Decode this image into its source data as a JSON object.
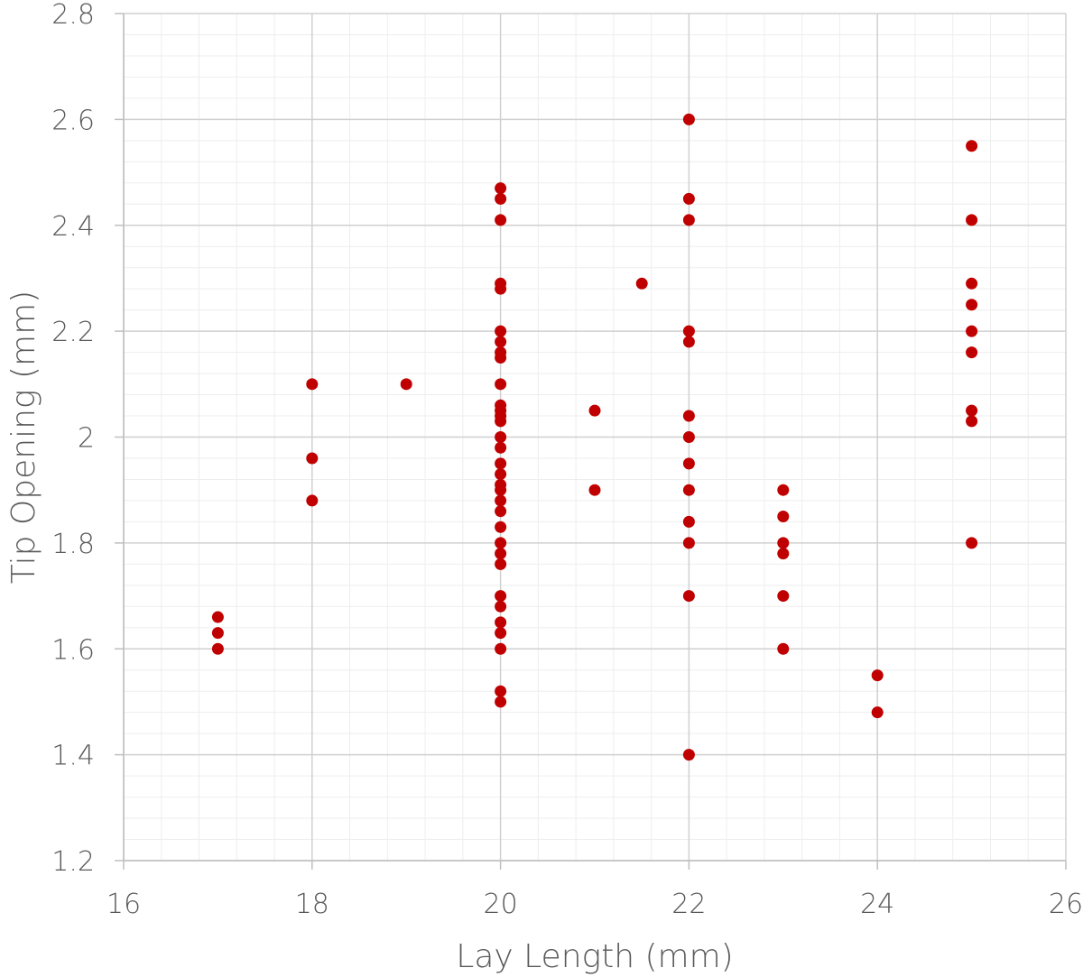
{
  "chart_data": {
    "type": "scatter",
    "title": "",
    "xlabel": "Lay Length (mm)",
    "ylabel": "Tip Opening (mm)",
    "xlim": [
      16,
      26
    ],
    "ylim": [
      1.2,
      2.8
    ],
    "x_ticks": [
      16,
      18,
      20,
      22,
      24,
      26
    ],
    "y_ticks": [
      1.2,
      1.4,
      1.6,
      1.8,
      2,
      2.2,
      2.4,
      2.6,
      2.8
    ],
    "x_tick_labels": [
      "16",
      "18",
      "20",
      "22",
      "24",
      "26"
    ],
    "y_tick_labels": [
      "1.2",
      "1.4",
      "1.6",
      "1.8",
      "2",
      "2.2",
      "2.4",
      "2.6",
      "2.8"
    ],
    "grid": true,
    "marker_color": "#C00000",
    "series": [
      {
        "points": [
          [
            17,
            1.66
          ],
          [
            17,
            1.63
          ],
          [
            17,
            1.6
          ],
          [
            18,
            2.1
          ],
          [
            18,
            1.96
          ],
          [
            18,
            1.88
          ],
          [
            19,
            2.1
          ],
          [
            20,
            2.47
          ],
          [
            20,
            2.45
          ],
          [
            20,
            2.41
          ],
          [
            20,
            2.29
          ],
          [
            20,
            2.28
          ],
          [
            20,
            2.2
          ],
          [
            20,
            2.18
          ],
          [
            20,
            2.16
          ],
          [
            20,
            2.15
          ],
          [
            20,
            2.1
          ],
          [
            20,
            2.06
          ],
          [
            20,
            2.05
          ],
          [
            20,
            2.04
          ],
          [
            20,
            2.03
          ],
          [
            20,
            2.0
          ],
          [
            20,
            1.98
          ],
          [
            20,
            1.95
          ],
          [
            20,
            1.93
          ],
          [
            20,
            1.91
          ],
          [
            20,
            1.9
          ],
          [
            20,
            1.88
          ],
          [
            20,
            1.86
          ],
          [
            20,
            1.83
          ],
          [
            20,
            1.8
          ],
          [
            20,
            1.78
          ],
          [
            20,
            1.76
          ],
          [
            20,
            1.7
          ],
          [
            20,
            1.68
          ],
          [
            20,
            1.65
          ],
          [
            20,
            1.63
          ],
          [
            20,
            1.6
          ],
          [
            20,
            1.52
          ],
          [
            20,
            1.5
          ],
          [
            21,
            2.05
          ],
          [
            21,
            1.9
          ],
          [
            21.5,
            2.29
          ],
          [
            22,
            2.6
          ],
          [
            22,
            2.45
          ],
          [
            22,
            2.41
          ],
          [
            22,
            2.2
          ],
          [
            22,
            2.18
          ],
          [
            22,
            2.04
          ],
          [
            22,
            2.0
          ],
          [
            22,
            1.95
          ],
          [
            22,
            1.9
          ],
          [
            22,
            1.84
          ],
          [
            22,
            1.8
          ],
          [
            22,
            1.7
          ],
          [
            22,
            1.4
          ],
          [
            23,
            1.9
          ],
          [
            23,
            1.85
          ],
          [
            23,
            1.8
          ],
          [
            23,
            1.78
          ],
          [
            23,
            1.7
          ],
          [
            23,
            1.6
          ],
          [
            24,
            1.55
          ],
          [
            24,
            1.48
          ],
          [
            25,
            2.55
          ],
          [
            25,
            2.41
          ],
          [
            25,
            2.29
          ],
          [
            25,
            2.25
          ],
          [
            25,
            2.2
          ],
          [
            25,
            2.16
          ],
          [
            25,
            2.05
          ],
          [
            25,
            2.03
          ],
          [
            25,
            1.8
          ]
        ]
      }
    ]
  }
}
